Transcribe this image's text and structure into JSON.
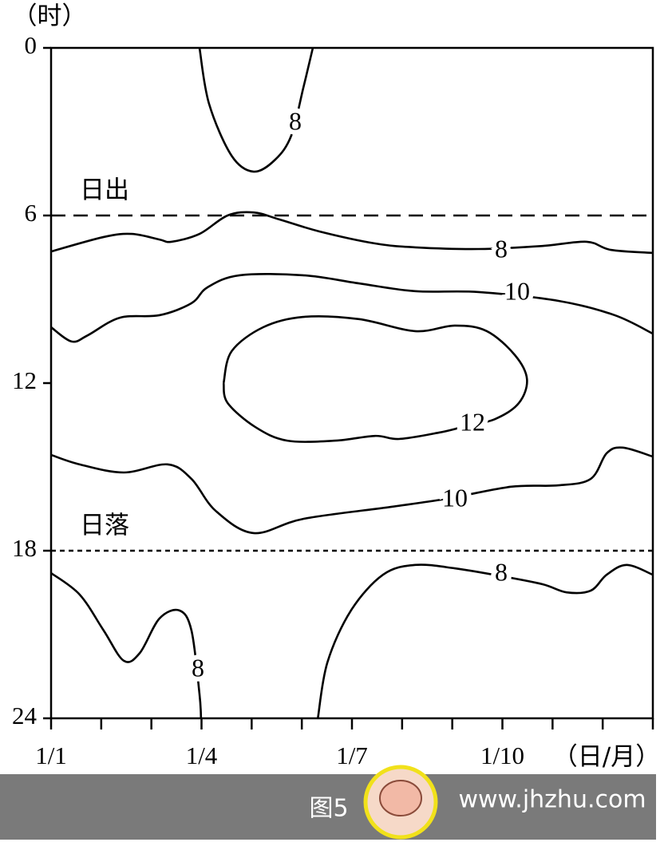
{
  "chart_data": {
    "type": "contour",
    "y_label": "（时）",
    "x_label": "（日/月）",
    "xlim": [
      1,
      13
    ],
    "ylim": [
      0,
      24
    ],
    "xticks": [
      {
        "value": 1,
        "label": "1/1"
      },
      {
        "value": 2,
        "label": null
      },
      {
        "value": 3,
        "label": null
      },
      {
        "value": 4,
        "label": "1/4"
      },
      {
        "value": 5,
        "label": null
      },
      {
        "value": 6,
        "label": null
      },
      {
        "value": 7,
        "label": "1/7"
      },
      {
        "value": 8,
        "label": null
      },
      {
        "value": 9,
        "label": null
      },
      {
        "value": 10,
        "label": "1/10"
      },
      {
        "value": 11,
        "label": null
      },
      {
        "value": 12,
        "label": null
      },
      {
        "value": 13,
        "label": null
      }
    ],
    "yticks": [
      0,
      6,
      12,
      18,
      24
    ],
    "reference_lines": [
      {
        "y": 6,
        "label": "日出",
        "dash": "18 10"
      },
      {
        "y": 18,
        "label": "日落",
        "dash": "6 5"
      }
    ],
    "contours": [
      {
        "level": 8,
        "x": [
          3.96,
          4.15,
          4.6,
          5.04,
          5.47,
          5.79,
          6.03,
          6.22
        ],
        "y": [
          0,
          2.0,
          3.86,
          4.43,
          4.0,
          3.14,
          1.43,
          0
        ]
      },
      {
        "level": 8,
        "x": [
          1,
          2.05,
          2.61,
          3.16,
          3.4,
          3.96,
          4.52,
          5.04,
          5.55,
          6.35,
          7.46,
          8.26,
          9.53,
          10.8,
          11.68,
          12.16,
          13
        ],
        "y": [
          7.29,
          6.77,
          6.66,
          6.86,
          6.94,
          6.66,
          6.0,
          5.89,
          6.14,
          6.57,
          7.0,
          7.14,
          7.2,
          7.09,
          6.94,
          7.23,
          7.34
        ]
      },
      {
        "level": 10,
        "x": [
          1,
          1.41,
          1.73,
          2.37,
          3.16,
          3.8,
          4.12,
          4.76,
          6.03,
          7.14,
          8.26,
          9.53,
          11.13,
          12.24,
          13
        ],
        "y": [
          10,
          10.51,
          10.29,
          9.66,
          9.57,
          9.14,
          8.57,
          8.14,
          8.14,
          8.43,
          8.71,
          8.74,
          9.06,
          9.57,
          10.23
        ]
      },
      {
        "level": 12,
        "x": [
          4.44,
          4.6,
          5.23,
          6.03,
          7.14,
          8.26,
          9.05,
          9.69,
          10.25,
          10.49,
          10.33,
          9.85,
          9.21,
          8.74,
          7.94,
          7.46,
          6.67,
          5.71,
          5.07,
          4.52,
          4.44
        ],
        "y": [
          12,
          10.86,
          10,
          9.63,
          9.71,
          10.14,
          9.94,
          10.14,
          11,
          11.86,
          12.71,
          13.29,
          13.57,
          13.77,
          14,
          13.89,
          14.06,
          14.06,
          13.57,
          12.71,
          12
        ]
      },
      {
        "level": 10,
        "x": [
          1,
          1.57,
          2.45,
          3.32,
          3.8,
          4.28,
          5.04,
          6.03,
          7.78,
          8.89,
          10.17,
          11.12,
          11.76,
          12.08,
          12.4,
          13
        ],
        "y": [
          14.57,
          14.91,
          15.2,
          14.91,
          15.43,
          16.57,
          17.37,
          16.86,
          16.43,
          16.14,
          15.71,
          15.66,
          15.43,
          14.51,
          14.31,
          14.63
        ]
      },
      {
        "level": 8,
        "x": [
          1,
          1.57,
          2.05,
          2.45,
          2.77,
          3.16,
          3.56,
          3.8,
          3.96,
          3.99
        ],
        "y": [
          18.8,
          19.57,
          20.86,
          21.94,
          21.66,
          20.43,
          20.14,
          20.86,
          23.14,
          24
        ]
      },
      {
        "level": 8,
        "x": [
          6.32,
          6.51,
          6.98,
          7.62,
          8.26,
          9.05,
          9.98,
          10.8,
          11.28,
          11.76,
          12.08,
          12.48,
          13
        ],
        "y": [
          24,
          22,
          20.14,
          18.86,
          18.51,
          18.63,
          18.91,
          19.2,
          19.49,
          19.43,
          18.86,
          18.51,
          18.86
        ]
      }
    ]
  },
  "caption": "图5",
  "watermark": "www.jhzhu.com"
}
